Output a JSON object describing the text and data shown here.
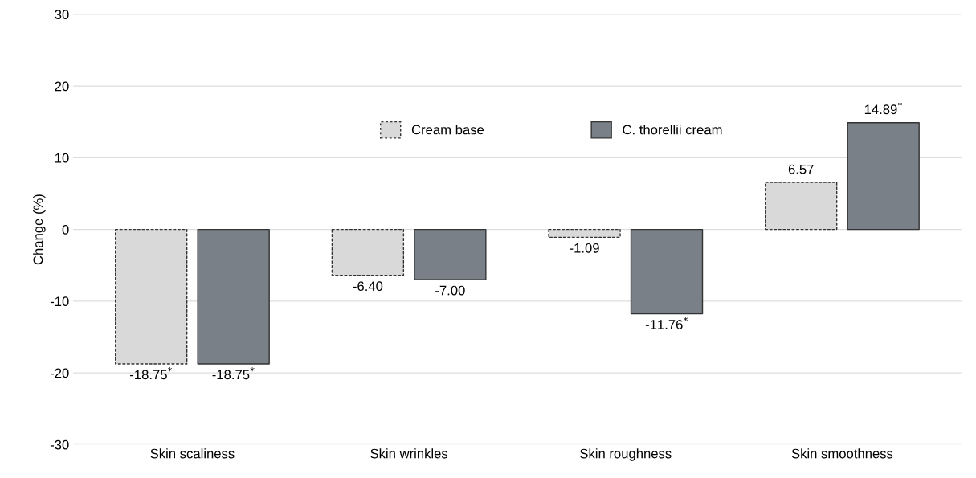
{
  "chart_data": {
    "type": "bar",
    "ylabel": "Change (%)",
    "categories": [
      "Skin scaliness",
      "Skin wrinkles",
      "Skin roughness",
      "Skin smoothness"
    ],
    "series": [
      {
        "name": "Cream base",
        "color": "#d9d9d9",
        "line_style": "dashed",
        "values": [
          -18.75,
          -6.4,
          -1.09,
          6.57
        ],
        "value_labels": [
          "-18.75$^{*}$",
          "-6.40",
          "-1.09",
          "6.57"
        ]
      },
      {
        "name": "C. thorellii cream",
        "color": "#7a8087",
        "line_style": "solid",
        "values": [
          -18.75,
          -7.0,
          -11.76,
          14.89
        ],
        "value_labels": [
          "-18.75$^{*}$",
          "-7.00",
          "-11.76$^{*}$",
          "14.89$^{*}$"
        ]
      }
    ],
    "ylim": [
      -30,
      30
    ],
    "yticks": [
      -30,
      -20,
      -10,
      0,
      10,
      20,
      30
    ],
    "grid": "y",
    "legend": "top"
  }
}
